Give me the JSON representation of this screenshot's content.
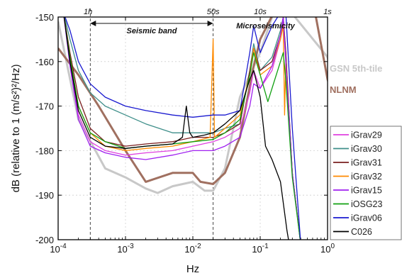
{
  "chart_data": {
    "type": "line",
    "xlabel": "Hz",
    "ylabel": "dB (relative to 1 (m/s²)²/Hz)",
    "x_scale": "log",
    "xlim": [
      0.0001,
      1
    ],
    "ylim": [
      -200,
      -150
    ],
    "grid": true,
    "legend_position": "right",
    "x_tick_labels": [
      {
        "value": 0.0001,
        "base": "10",
        "exp": "-4"
      },
      {
        "value": 0.001,
        "base": "10",
        "exp": "-3"
      },
      {
        "value": 0.01,
        "base": "10",
        "exp": "-2"
      },
      {
        "value": 0.1,
        "base": "10",
        "exp": "-1"
      },
      {
        "value": 1,
        "base": "10",
        "exp": "0"
      }
    ],
    "y_ticks": [
      -150,
      -160,
      -170,
      -180,
      -190,
      -200
    ],
    "y_tick_labels": [
      "-150",
      "-160",
      "-170",
      "-180",
      "-190",
      "-200"
    ],
    "period_labels": [
      {
        "x": 0.000278,
        "text": "1h"
      },
      {
        "x": 0.02,
        "text": "50s"
      },
      {
        "x": 0.1,
        "text": "10s"
      },
      {
        "x": 1,
        "text": "1s"
      }
    ],
    "annotations": {
      "seismic_band": {
        "label": "Seismic band",
        "x_from": 0.0003,
        "x_to": 0.02
      },
      "microseismicity": {
        "label": "Microseismicity",
        "x_at": 0.12
      }
    },
    "reference_lines": [
      0.0003,
      0.02
    ],
    "models": [
      {
        "name": "GSN 5th-tile",
        "color": "#c8c8c8",
        "points": [
          [
            0.0001,
            -151
          ],
          [
            0.0002,
            -173
          ],
          [
            0.0005,
            -184
          ],
          [
            0.001,
            -186
          ],
          [
            0.002,
            -188.5
          ],
          [
            0.003,
            -189.5
          ],
          [
            0.005,
            -188
          ],
          [
            0.01,
            -187
          ],
          [
            0.015,
            -189
          ],
          [
            0.02,
            -189
          ],
          [
            0.03,
            -184
          ],
          [
            0.05,
            -168
          ],
          [
            0.07,
            -163
          ],
          [
            0.1,
            -158
          ],
          [
            0.15,
            -150
          ],
          [
            0.2,
            -146
          ],
          [
            1,
            -159
          ],
          [
            1.1,
            -161
          ]
        ]
      },
      {
        "name": "NLNM",
        "color": "#a07060",
        "points": [
          [
            0.0001,
            -157
          ],
          [
            0.0002,
            -163
          ],
          [
            0.0004,
            -170
          ],
          [
            0.001,
            -180
          ],
          [
            0.002,
            -187
          ],
          [
            0.005,
            -185
          ],
          [
            0.01,
            -185
          ],
          [
            0.013,
            -187
          ],
          [
            0.02,
            -187.5
          ],
          [
            0.03,
            -185
          ],
          [
            0.05,
            -177
          ],
          [
            0.08,
            -161
          ],
          [
            0.1,
            -155
          ],
          [
            0.2,
            -146
          ],
          [
            0.6,
            -146
          ],
          [
            1,
            -164
          ],
          [
            1.1,
            -166
          ]
        ]
      }
    ],
    "series": [
      {
        "name": "iGrav29",
        "color": "#e040e0",
        "points": [
          [
            0.00012,
            -149
          ],
          [
            0.00015,
            -160
          ],
          [
            0.0002,
            -172
          ],
          [
            0.0003,
            -178
          ],
          [
            0.0005,
            -180
          ],
          [
            0.001,
            -181
          ],
          [
            0.002,
            -180.5
          ],
          [
            0.005,
            -180
          ],
          [
            0.01,
            -179
          ],
          [
            0.02,
            -178
          ],
          [
            0.03,
            -177
          ],
          [
            0.05,
            -175
          ],
          [
            0.07,
            -167
          ],
          [
            0.08,
            -162
          ],
          [
            0.1,
            -166
          ],
          [
            0.15,
            -162
          ],
          [
            0.2,
            -155
          ],
          [
            0.22,
            -151
          ],
          [
            0.24,
            -160
          ],
          [
            0.3,
            -185
          ],
          [
            0.4,
            -201
          ]
        ]
      },
      {
        "name": "iGrav30",
        "color": "#3f8f8a",
        "points": [
          [
            0.00012,
            -149
          ],
          [
            0.00015,
            -155
          ],
          [
            0.0002,
            -162
          ],
          [
            0.0003,
            -167
          ],
          [
            0.0005,
            -170
          ],
          [
            0.001,
            -172
          ],
          [
            0.002,
            -174
          ],
          [
            0.005,
            -176
          ],
          [
            0.01,
            -176
          ],
          [
            0.02,
            -176
          ],
          [
            0.03,
            -175
          ],
          [
            0.05,
            -174
          ],
          [
            0.07,
            -162
          ],
          [
            0.08,
            -156
          ],
          [
            0.1,
            -162
          ],
          [
            0.15,
            -159
          ],
          [
            0.2,
            -153
          ],
          [
            0.22,
            -150
          ],
          [
            0.24,
            -158
          ],
          [
            0.3,
            -185
          ],
          [
            0.4,
            -201
          ]
        ]
      },
      {
        "name": "iGrav31",
        "color": "#7a1f1f",
        "points": [
          [
            0.00012,
            -149
          ],
          [
            0.00015,
            -158
          ],
          [
            0.0002,
            -168
          ],
          [
            0.0003,
            -175
          ],
          [
            0.0005,
            -178
          ],
          [
            0.001,
            -179
          ],
          [
            0.002,
            -178.5
          ],
          [
            0.005,
            -178
          ],
          [
            0.01,
            -177
          ],
          [
            0.02,
            -177
          ],
          [
            0.03,
            -176
          ],
          [
            0.05,
            -174
          ],
          [
            0.07,
            -162
          ],
          [
            0.08,
            -157
          ],
          [
            0.1,
            -162
          ],
          [
            0.15,
            -160
          ],
          [
            0.2,
            -154
          ],
          [
            0.22,
            -150
          ],
          [
            0.24,
            -158
          ],
          [
            0.3,
            -185
          ],
          [
            0.4,
            -201
          ]
        ]
      },
      {
        "name": "iGrav32",
        "color": "#ff8a00",
        "points": [
          [
            0.00012,
            -149
          ],
          [
            0.00015,
            -159
          ],
          [
            0.0002,
            -170
          ],
          [
            0.0003,
            -176
          ],
          [
            0.0005,
            -179
          ],
          [
            0.001,
            -180
          ],
          [
            0.002,
            -179.5
          ],
          [
            0.005,
            -179
          ],
          [
            0.01,
            -178
          ],
          [
            0.018,
            -177
          ],
          [
            0.02,
            -155
          ],
          [
            0.021,
            -177
          ],
          [
            0.03,
            -175
          ],
          [
            0.05,
            -172
          ],
          [
            0.07,
            -163
          ],
          [
            0.08,
            -157
          ],
          [
            0.1,
            -163
          ],
          [
            0.15,
            -161
          ],
          [
            0.2,
            -155
          ],
          [
            0.22,
            -152
          ],
          [
            0.23,
            -172
          ],
          [
            0.24,
            -160
          ],
          [
            0.3,
            -185
          ],
          [
            0.4,
            -201
          ]
        ]
      },
      {
        "name": "iGrav15",
        "color": "#a020f0",
        "points": [
          [
            0.00012,
            -149
          ],
          [
            0.00015,
            -161
          ],
          [
            0.0002,
            -173
          ],
          [
            0.0003,
            -179
          ],
          [
            0.0005,
            -180.5
          ],
          [
            0.001,
            -181.5
          ],
          [
            0.002,
            -182
          ],
          [
            0.005,
            -181
          ],
          [
            0.01,
            -180
          ],
          [
            0.02,
            -180
          ],
          [
            0.03,
            -179
          ],
          [
            0.05,
            -177
          ],
          [
            0.07,
            -170
          ],
          [
            0.08,
            -165
          ],
          [
            0.1,
            -166
          ],
          [
            0.15,
            -161
          ],
          [
            0.2,
            -154
          ],
          [
            0.22,
            -150
          ],
          [
            0.24,
            -160
          ],
          [
            0.3,
            -185
          ],
          [
            0.4,
            -201
          ]
        ]
      },
      {
        "name": "iOSG23",
        "color": "#12a012",
        "points": [
          [
            0.00012,
            -149
          ],
          [
            0.00015,
            -159
          ],
          [
            0.0002,
            -170
          ],
          [
            0.0003,
            -176
          ],
          [
            0.0005,
            -178
          ],
          [
            0.001,
            -179.5
          ],
          [
            0.002,
            -179
          ],
          [
            0.005,
            -178.5
          ],
          [
            0.01,
            -178
          ],
          [
            0.02,
            -177.5
          ],
          [
            0.03,
            -176
          ],
          [
            0.05,
            -173
          ],
          [
            0.07,
            -163
          ],
          [
            0.08,
            -158
          ],
          [
            0.1,
            -163
          ],
          [
            0.13,
            -169
          ],
          [
            0.15,
            -166
          ],
          [
            0.2,
            -160
          ],
          [
            0.22,
            -158
          ],
          [
            0.24,
            -164
          ],
          [
            0.3,
            -186
          ],
          [
            0.4,
            -201
          ]
        ]
      },
      {
        "name": "iGrav06",
        "color": "#1a1ad0",
        "points": [
          [
            0.00012,
            -149
          ],
          [
            0.00015,
            -153
          ],
          [
            0.0002,
            -160
          ],
          [
            0.0003,
            -165
          ],
          [
            0.0005,
            -168
          ],
          [
            0.001,
            -170
          ],
          [
            0.002,
            -171
          ],
          [
            0.005,
            -172
          ],
          [
            0.01,
            -172.5
          ],
          [
            0.02,
            -172
          ],
          [
            0.03,
            -172
          ],
          [
            0.05,
            -171
          ],
          [
            0.07,
            -158
          ],
          [
            0.08,
            -152
          ],
          [
            0.1,
            -158
          ],
          [
            0.15,
            -152
          ],
          [
            0.2,
            -149
          ],
          [
            0.24,
            -149
          ],
          [
            0.3,
            -175
          ],
          [
            0.4,
            -201
          ]
        ]
      },
      {
        "name": "C026",
        "color": "#000000",
        "points": [
          [
            0.00012,
            -149
          ],
          [
            0.00015,
            -160
          ],
          [
            0.0002,
            -171
          ],
          [
            0.0003,
            -177
          ],
          [
            0.0005,
            -179
          ],
          [
            0.001,
            -179.5
          ],
          [
            0.002,
            -179
          ],
          [
            0.005,
            -178.5
          ],
          [
            0.007,
            -177
          ],
          [
            0.008,
            -170
          ],
          [
            0.009,
            -176
          ],
          [
            0.01,
            -177
          ],
          [
            0.015,
            -176.5
          ],
          [
            0.02,
            -176
          ],
          [
            0.03,
            -174
          ],
          [
            0.05,
            -171
          ],
          [
            0.07,
            -164
          ],
          [
            0.08,
            -162
          ],
          [
            0.1,
            -168
          ],
          [
            0.12,
            -179
          ],
          [
            0.15,
            -182
          ],
          [
            0.2,
            -187
          ],
          [
            0.25,
            -198
          ],
          [
            0.27,
            -201
          ]
        ]
      }
    ]
  }
}
